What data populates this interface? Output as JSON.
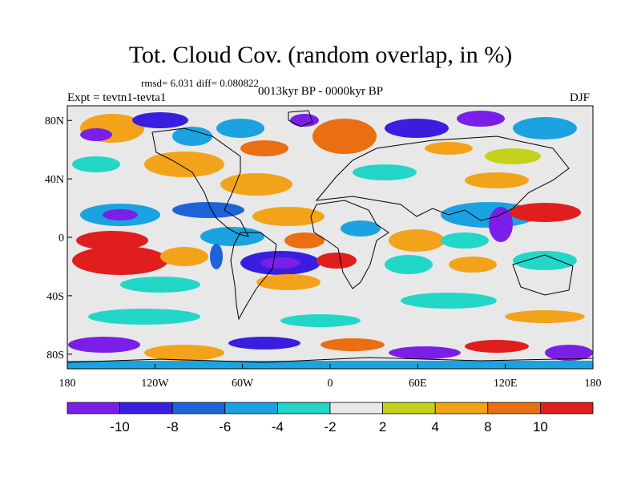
{
  "title": "Tot. Cloud Cov. (random overlap, in %)",
  "stats": "rmsd= 6.031 diff= 0.080822",
  "experiment": "Expt = tevtn1-tevta1",
  "period": "0013kyr BP - 0000kyr BP",
  "season": "DJF",
  "axes": {
    "lat_labels": [
      "80N",
      "40N",
      "0",
      "40S",
      "80S"
    ],
    "lat_values": [
      80,
      40,
      0,
      -40,
      -80
    ],
    "lon_labels": [
      "180",
      "120W",
      "60W",
      "0",
      "60E",
      "120E",
      "180"
    ],
    "lon_values": [
      -180,
      -120,
      -60,
      0,
      60,
      120,
      180
    ],
    "lat_range": [
      -90,
      90
    ],
    "lon_range": [
      -180,
      180
    ]
  },
  "colorbar": {
    "labels": [
      "-10",
      "-8",
      "-6",
      "-4",
      "-2",
      "2",
      "4",
      "8",
      "10"
    ],
    "colors": [
      "#7b1fe8",
      "#3a1ee0",
      "#1e64d8",
      "#1aa3e0",
      "#22d6c8",
      "#e8e8e8",
      "#c6d21a",
      "#f2a31a",
      "#ea6e12",
      "#e01e1e"
    ]
  }
}
